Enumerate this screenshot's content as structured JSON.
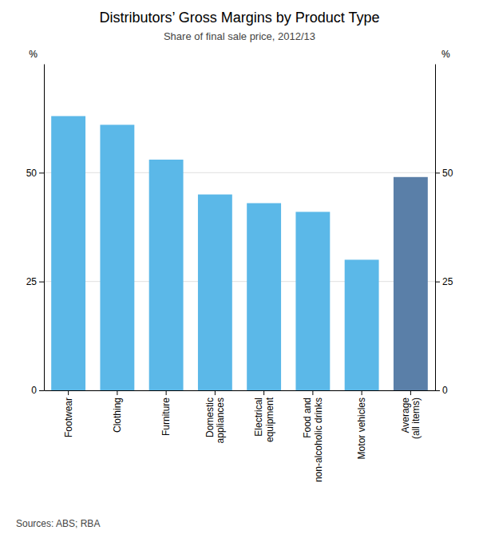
{
  "chart_data": {
    "type": "bar",
    "title": "Distributors’ Gross Margins by Product Type",
    "subtitle": "Share of final sale price, 2012/13",
    "source": "Sources:  ABS; RBA",
    "categories": [
      "Footwear",
      "Clothing",
      "Furniture",
      "Domestic\nappliances",
      "Electrical\nequipment",
      "Food and\nnon-alcoholic drinks",
      "Motor vehicles",
      "Average\n(all items)"
    ],
    "values": [
      63,
      61,
      53,
      45,
      43,
      41,
      30,
      49
    ],
    "colors": [
      "#5bb8e8",
      "#5bb8e8",
      "#5bb8e8",
      "#5bb8e8",
      "#5bb8e8",
      "#5bb8e8",
      "#5bb8e8",
      "#5a7fa8"
    ],
    "ylabel": "%",
    "y2label": "%",
    "ylim": [
      0,
      75
    ],
    "yticks": [
      0,
      25,
      50
    ],
    "y2lim": [
      0,
      75
    ],
    "y2ticks": [
      0,
      25,
      50
    ],
    "grid": true
  }
}
